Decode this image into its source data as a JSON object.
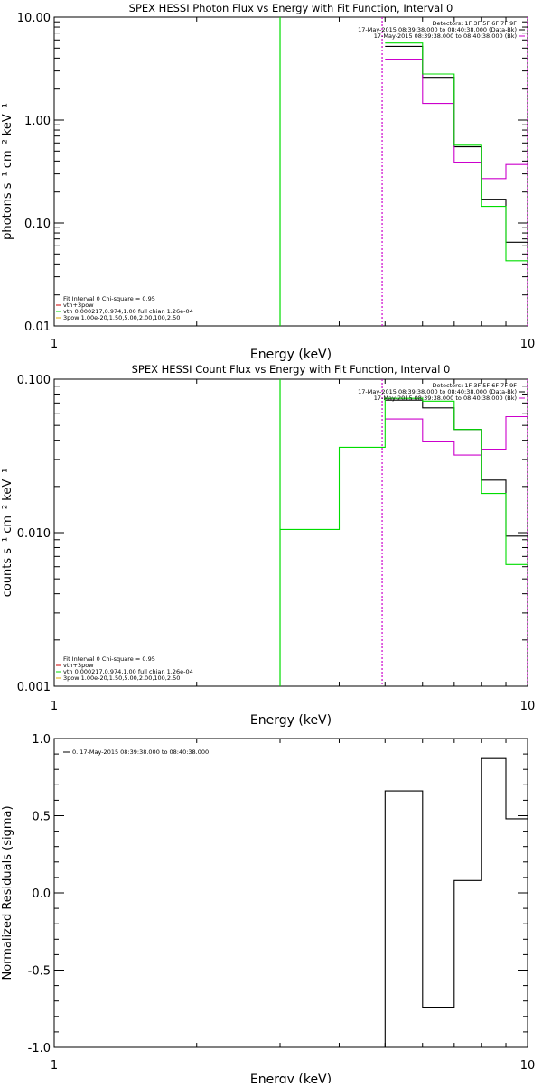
{
  "chart_data": [
    {
      "type": "line",
      "title": "SPEX HESSI Photon Flux vs Energy with Fit Function, Interval 0",
      "xlabel": "Energy (keV)",
      "ylabel": "photons s⁻¹ cm⁻² keV⁻¹",
      "xscale": "log",
      "yscale": "log",
      "xlim": [
        1,
        10
      ],
      "ylim": [
        0.01,
        10
      ],
      "x_ticks": [
        1,
        10
      ],
      "x_tick_labels": [
        "1",
        "10"
      ],
      "y_ticks": [
        0.01,
        0.1,
        1,
        10
      ],
      "y_tick_labels": [
        "0.01",
        "0.10",
        "1.00",
        "10.00"
      ],
      "legend_right": [
        "Detectors: 1F 3F 5F 6F 7F 9F",
        "17-May-2015 08:39:38.000 to 08:40:38.000 (Data-Bk)",
        "17-May-2015 08:39:38.000 to 08:40:38.000 (Bk)"
      ],
      "legend_left": [
        "Fit Interval  0   Chi-square = 0.95",
        "vth+3pow",
        "vth 0.000217,0.974,1.00  full chian 1.26e-04",
        "3pow 1.00e-20,1.50,5.00,2.00,100,2.50"
      ],
      "edges": [
        3.0,
        4.0,
        5.0,
        6.0,
        7.0,
        8.0,
        9.0,
        10.0
      ],
      "series": [
        {
          "name": "Data-Bk",
          "color": "#000000",
          "values": [
            null,
            null,
            5.2,
            2.6,
            0.55,
            0.17,
            0.065
          ]
        },
        {
          "name": "Bk",
          "color": "#cc00cc",
          "values": [
            null,
            null,
            3.9,
            1.45,
            0.39,
            0.27,
            0.37
          ]
        },
        {
          "name": "vth",
          "color": "#00dd00",
          "values": [
            null,
            null,
            5.6,
            2.8,
            0.57,
            0.145,
            0.043
          ]
        }
      ],
      "vlines": [
        {
          "x": 3.0,
          "color": "#00dd00",
          "dashed": false
        },
        {
          "x": 4.93,
          "color": "#cc00cc",
          "dashed": true
        },
        {
          "x": 10.0,
          "color": "#cc00cc",
          "dashed": true
        }
      ]
    },
    {
      "type": "line",
      "title": "SPEX HESSI Count Flux vs Energy with Fit Function, Interval 0",
      "xlabel": "Energy (keV)",
      "ylabel": "counts s⁻¹ cm⁻² keV⁻¹",
      "xscale": "log",
      "yscale": "log",
      "xlim": [
        1,
        10
      ],
      "ylim": [
        0.001,
        0.1
      ],
      "x_ticks": [
        1,
        10
      ],
      "x_tick_labels": [
        "1",
        "10"
      ],
      "y_ticks": [
        0.001,
        0.01,
        0.1
      ],
      "y_tick_labels": [
        "0.001",
        "0.010",
        "0.100"
      ],
      "legend_right": [
        "Detectors: 1F 3F 5F 6F 7F 9F",
        "17-May-2015 08:39:38.000 to 08:40:38.000 (Data-Bk)",
        "17-May-2015 08:39:38.000 to 08:40:38.000 (Bk)"
      ],
      "legend_left": [
        "Fit Interval  0   Chi-square = 0.95",
        "vth+3pow",
        "vth 0.000217,0.974,1.00  full chian 1.26e-04",
        "3pow 1.00e-20,1.50,5.00,2.00,100,2.50"
      ],
      "edges": [
        3.0,
        4.0,
        5.0,
        6.0,
        7.0,
        8.0,
        9.0,
        10.0
      ],
      "series": [
        {
          "name": "Data-Bk",
          "color": "#000000",
          "values": [
            null,
            null,
            0.073,
            0.065,
            0.047,
            0.022,
            0.0095
          ]
        },
        {
          "name": "Bk",
          "color": "#cc00cc",
          "values": [
            null,
            null,
            0.055,
            0.039,
            0.032,
            0.035,
            0.057
          ]
        },
        {
          "name": "vth",
          "color": "#00dd00",
          "values": [
            0.0105,
            0.036,
            0.075,
            0.072,
            0.047,
            0.018,
            0.0062
          ]
        }
      ],
      "vlines": [
        {
          "x": 3.0,
          "color": "#00dd00",
          "dashed": false
        },
        {
          "x": 4.93,
          "color": "#cc00cc",
          "dashed": true
        },
        {
          "x": 10.0,
          "color": "#cc00cc",
          "dashed": true
        }
      ]
    },
    {
      "type": "line",
      "title": "",
      "xlabel": "Energy (keV)",
      "ylabel": "Normalized Residuals (sigma)",
      "xscale": "log",
      "yscale": "linear",
      "xlim": [
        1,
        10
      ],
      "ylim": [
        -1.0,
        1.0
      ],
      "x_ticks": [
        1,
        10
      ],
      "x_tick_labels": [
        "1",
        "10"
      ],
      "y_ticks": [
        -1.0,
        -0.5,
        0.0,
        0.5,
        1.0
      ],
      "y_tick_labels": [
        "-1.0",
        "-0.5",
        "0.0",
        "0.5",
        "1.0"
      ],
      "legend_right": [],
      "legend_left": [
        "0. 17-May-2015 08:39:38.000 to 08:40:38.000"
      ],
      "edges": [
        3.0,
        4.0,
        5.0,
        6.0,
        7.0,
        8.0,
        9.0,
        10.0
      ],
      "series": [
        {
          "name": "0. 17-May-2015 08:39:38.000 to 08:40:38.000",
          "color": "#000000",
          "values": [
            null,
            null,
            0.66,
            -0.74,
            0.08,
            0.87,
            0.48
          ]
        }
      ],
      "vlines": []
    }
  ]
}
